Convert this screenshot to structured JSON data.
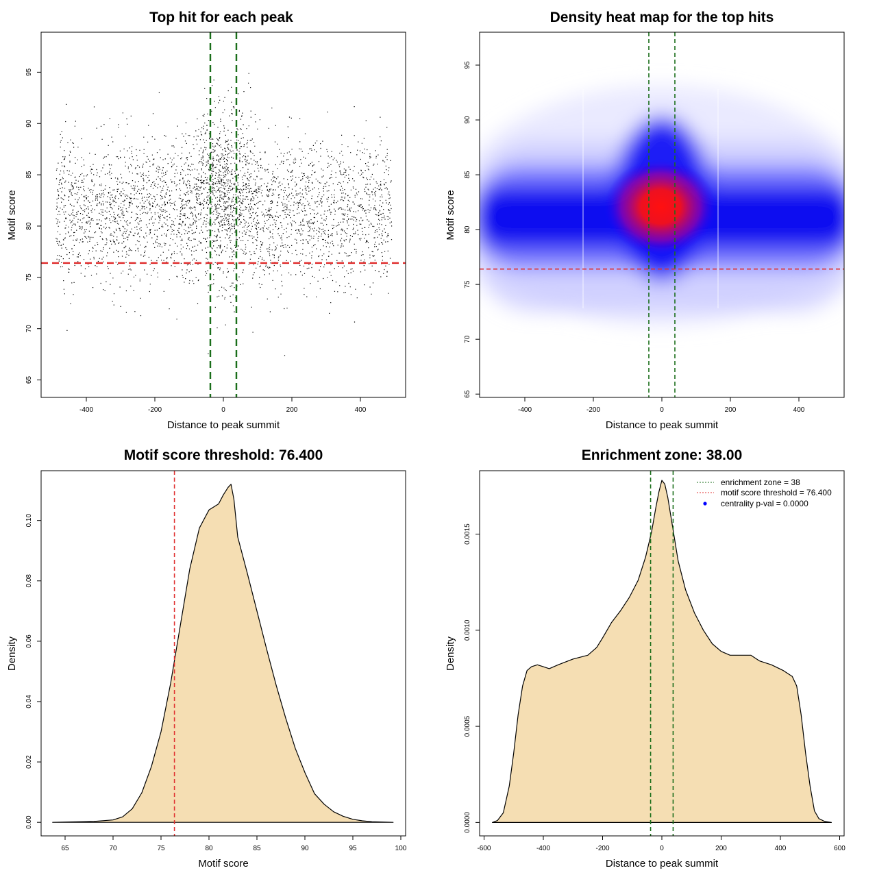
{
  "colors": {
    "threshold_line": "#e03030",
    "zone_line": "#1a6e1a",
    "density_fill": "#f5deb3",
    "points": "#000000",
    "heat_low": "#0000ff",
    "heat_high": "#ff0000",
    "legend_point": "#0000ff"
  },
  "chart_data": [
    {
      "id": "scatter",
      "type": "scatter",
      "title": "Top hit for each peak",
      "xlabel": "Distance to peak summit",
      "ylabel": "Motif score",
      "xlim": [
        -532,
        532
      ],
      "ylim": [
        63.3,
        98.9
      ],
      "xticks": [
        -400,
        -200,
        0,
        200,
        400
      ],
      "xtick_labels": [
        "-400",
        "-200",
        "0",
        "200",
        "400"
      ],
      "yticks": [
        65,
        70,
        75,
        80,
        85,
        90,
        95
      ],
      "ytick_labels": [
        "65",
        "70",
        "75",
        "80",
        "85",
        "90",
        "95"
      ],
      "point_count_approx": 30000,
      "x_range_points": [
        -490,
        490
      ],
      "score_center": 81.5,
      "score_spread": 3.5,
      "h_lines": [
        {
          "y": 76.4,
          "style": "dashed",
          "color": "threshold_line"
        }
      ],
      "v_lines": [
        {
          "x": -38,
          "style": "dashed",
          "color": "zone_line"
        },
        {
          "x": 38,
          "style": "dashed",
          "color": "zone_line"
        }
      ]
    },
    {
      "id": "heatmap",
      "type": "heatmap",
      "title": "Density heat map for the top hits",
      "xlabel": "Distance to peak summit",
      "ylabel": "Motif score",
      "xlim": [
        -532,
        532
      ],
      "ylim": [
        64.7,
        98.0
      ],
      "xticks": [
        -400,
        -200,
        0,
        200,
        400
      ],
      "xtick_labels": [
        "-400",
        "-200",
        "0",
        "200",
        "400"
      ],
      "yticks": [
        65,
        70,
        75,
        80,
        85,
        90,
        95
      ],
      "ytick_labels": [
        "65",
        "70",
        "75",
        "80",
        "85",
        "90",
        "95"
      ],
      "peak": {
        "x": 0,
        "y": 82
      },
      "h_lines": [
        {
          "y": 76.4,
          "style": "dashed",
          "color": "threshold_line"
        }
      ],
      "v_lines": [
        {
          "x": -38,
          "style": "dashed",
          "color": "zone_line"
        },
        {
          "x": 38,
          "style": "dashed",
          "color": "zone_line"
        }
      ]
    },
    {
      "id": "score-density",
      "type": "area",
      "title": "Motif score threshold: 76.400",
      "xlabel": "Motif score",
      "ylabel": "Density",
      "xlim": [
        62.5,
        100.5
      ],
      "ylim": [
        -0.0045,
        0.1165
      ],
      "xticks": [
        65,
        70,
        75,
        80,
        85,
        90,
        95,
        100
      ],
      "xtick_labels": [
        "65",
        "70",
        "75",
        "80",
        "85",
        "90",
        "95",
        "100"
      ],
      "yticks": [
        0.0,
        0.02,
        0.04,
        0.06,
        0.08,
        0.1
      ],
      "ytick_labels": [
        "0.00",
        "0.02",
        "0.04",
        "0.06",
        "0.08",
        "0.10"
      ],
      "x": [
        63.7,
        68,
        70,
        71,
        72,
        73,
        74,
        75,
        76,
        77,
        78,
        79,
        80,
        80.5,
        81,
        81.5,
        82,
        82.3,
        82.6,
        83,
        84,
        85,
        86,
        87,
        88,
        89,
        90,
        91,
        92,
        93,
        94,
        95,
        96,
        97,
        99.2
      ],
      "y": [
        0,
        0.0003,
        0.0008,
        0.0018,
        0.0045,
        0.0098,
        0.0185,
        0.03,
        0.046,
        0.065,
        0.084,
        0.0975,
        0.1035,
        0.1045,
        0.1055,
        0.1085,
        0.111,
        0.112,
        0.107,
        0.0945,
        0.0825,
        0.07,
        0.0575,
        0.0455,
        0.0345,
        0.0245,
        0.0165,
        0.0095,
        0.006,
        0.0035,
        0.002,
        0.001,
        0.0005,
        0.0002,
        0
      ],
      "v_lines": [
        {
          "x": 76.4,
          "style": "dashed",
          "color": "threshold_line"
        }
      ]
    },
    {
      "id": "distance-density",
      "type": "area",
      "title": "Enrichment zone: 38.00",
      "xlabel": "Distance to peak summit",
      "ylabel": "Density",
      "xlim": [
        -615,
        615
      ],
      "ylim": [
        -7e-05,
        0.00183
      ],
      "xticks": [
        -600,
        -400,
        -200,
        0,
        200,
        400,
        600
      ],
      "xtick_labels": [
        "-600",
        "-400",
        "-200",
        "0",
        "200",
        "400",
        "600"
      ],
      "yticks": [
        0.0,
        0.0005,
        0.001,
        0.0015
      ],
      "ytick_labels": [
        "0.0000",
        "0.0005",
        "0.0010",
        "0.0015"
      ],
      "x": [
        -572,
        -555,
        -535,
        -515,
        -500,
        -485,
        -470,
        -455,
        -440,
        -420,
        -400,
        -380,
        -350,
        -300,
        -250,
        -220,
        -200,
        -170,
        -140,
        -110,
        -80,
        -55,
        -35,
        -20,
        -10,
        0,
        10,
        20,
        35,
        55,
        80,
        110,
        140,
        170,
        200,
        230,
        270,
        300,
        330,
        370,
        410,
        440,
        455,
        470,
        485,
        500,
        515,
        530,
        550,
        572
      ],
      "y": [
        0,
        1e-05,
        5e-05,
        0.00019,
        0.00036,
        0.00056,
        0.00071,
        0.00079,
        0.00081,
        0.00082,
        0.00081,
        0.0008,
        0.00082,
        0.00085,
        0.00087,
        0.00091,
        0.00096,
        0.00104,
        0.0011,
        0.00117,
        0.00126,
        0.00138,
        0.00151,
        0.00164,
        0.00172,
        0.00178,
        0.00176,
        0.00169,
        0.00155,
        0.00136,
        0.00121,
        0.00109,
        0.001,
        0.00093,
        0.00089,
        0.00087,
        0.00087,
        0.00087,
        0.00084,
        0.00082,
        0.00079,
        0.00076,
        0.00071,
        0.00056,
        0.00036,
        0.00019,
        6e-05,
        2e-05,
        5e-06,
        0
      ],
      "v_lines": [
        {
          "x": -38,
          "style": "dashed",
          "color": "zone_line"
        },
        {
          "x": 38,
          "style": "dashed",
          "color": "zone_line"
        }
      ],
      "legend": {
        "position": "top-right",
        "entries": [
          {
            "label": "enrichment zone = 38",
            "marker": "dotted-line",
            "color": "zone_line"
          },
          {
            "label": "motif score threshold = 76.400",
            "marker": "dotted-line",
            "color": "threshold_line"
          },
          {
            "label": "centrality p-val = 0.0000",
            "marker": "point",
            "color": "legend_point"
          }
        ]
      }
    }
  ]
}
